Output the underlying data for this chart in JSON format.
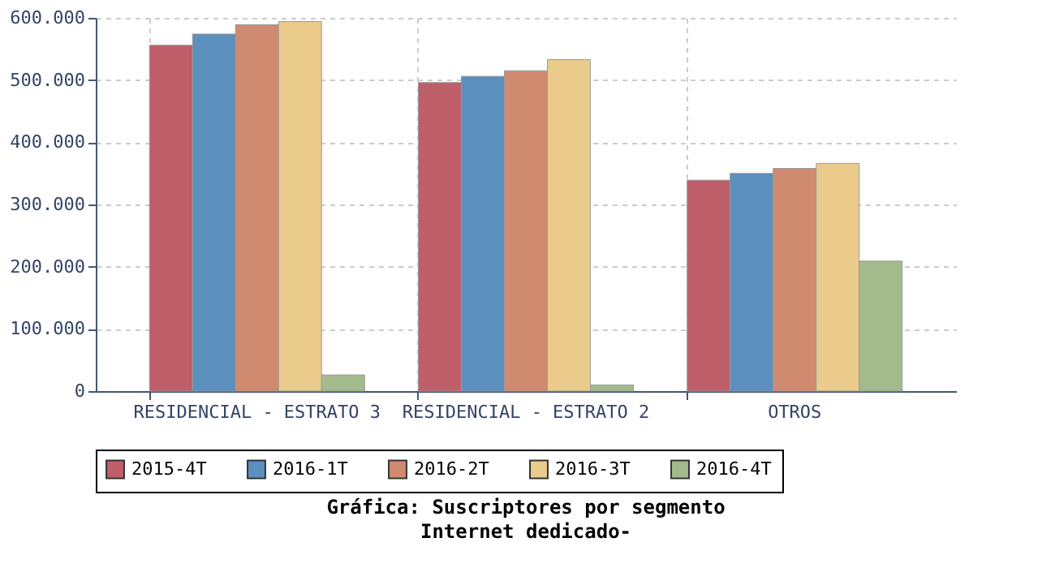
{
  "chart_data": {
    "type": "bar",
    "title": "Gráfica: Suscriptores por segmento",
    "subtitle": "Internet dedicado-",
    "categories": [
      "RESIDENCIAL - ESTRATO 3",
      "RESIDENCIAL - ESTRATO 2",
      "OTROS"
    ],
    "series": [
      {
        "name": "2015-4T",
        "color": "#be5f69",
        "values": [
          556000,
          496000,
          339000
        ]
      },
      {
        "name": "2016-1T",
        "color": "#5b8fbe",
        "values": [
          574000,
          506000,
          350000
        ]
      },
      {
        "name": "2016-2T",
        "color": "#d08a70",
        "values": [
          589000,
          515000,
          358000
        ]
      },
      {
        "name": "2016-3T",
        "color": "#eacb8c",
        "values": [
          594000,
          533000,
          366000
        ]
      },
      {
        "name": "2016-4T",
        "color": "#a3bb8c",
        "values": [
          26000,
          10000,
          209000
        ]
      }
    ],
    "ylim": [
      0,
      600000
    ],
    "yticks": [
      {
        "value": 0,
        "label": "0"
      },
      {
        "value": 100000,
        "label": "100.000"
      },
      {
        "value": 200000,
        "label": "200.000"
      },
      {
        "value": 300000,
        "label": "300.000"
      },
      {
        "value": 400000,
        "label": "400.000"
      },
      {
        "value": 500000,
        "label": "500.000"
      },
      {
        "value": 600000,
        "label": "600.000"
      }
    ],
    "grid": true,
    "legend": "bottom"
  }
}
